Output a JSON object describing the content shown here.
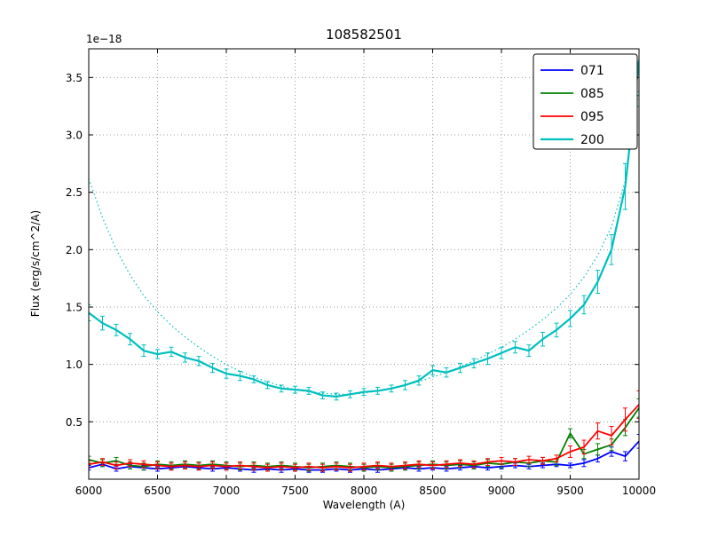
{
  "figure": {
    "title": "108582501",
    "offset_text": "1e−18",
    "xlabel": "Wavelength (A)",
    "ylabel": "Flux (erg/s/cm^2/A)"
  },
  "chart_data": {
    "type": "line",
    "title": "108582501",
    "xlabel": "Wavelength (A)",
    "ylabel": "Flux (erg/s/cm^2/A)",
    "y_offset_factor": "1e−18",
    "xlim": [
      6000,
      10000
    ],
    "ylim": [
      0,
      3.75
    ],
    "xticks": [
      "6000",
      "6500",
      "7000",
      "7500",
      "8000",
      "8500",
      "9000",
      "9500",
      "10000"
    ],
    "yticks": [
      "0.5",
      "1.0",
      "1.5",
      "2.0",
      "2.5",
      "3.0",
      "3.5"
    ],
    "grid": true,
    "legend_position": "upper right",
    "x": [
      6000,
      6100,
      6200,
      6300,
      6400,
      6500,
      6600,
      6700,
      6800,
      6900,
      7000,
      7100,
      7200,
      7300,
      7400,
      7500,
      7600,
      7700,
      7800,
      7900,
      8000,
      8100,
      8200,
      8300,
      8400,
      8500,
      8600,
      8700,
      8800,
      8900,
      9000,
      9100,
      9200,
      9300,
      9400,
      9500,
      9600,
      9700,
      9800,
      9900,
      10000
    ],
    "series": [
      {
        "name": "071",
        "color": "#0000ff",
        "lw": 1.8,
        "values": [
          0.1,
          0.13,
          0.09,
          0.11,
          0.1,
          0.09,
          0.1,
          0.11,
          0.1,
          0.09,
          0.1,
          0.09,
          0.08,
          0.09,
          0.08,
          0.09,
          0.08,
          0.08,
          0.09,
          0.08,
          0.09,
          0.08,
          0.09,
          0.1,
          0.09,
          0.1,
          0.09,
          0.1,
          0.11,
          0.1,
          0.11,
          0.12,
          0.11,
          0.12,
          0.13,
          0.12,
          0.14,
          0.18,
          0.24,
          0.2,
          0.33
        ],
        "err": [
          0.02,
          0.02,
          0.02,
          0.02,
          0.02,
          0.02,
          0.02,
          0.02,
          0.02,
          0.02,
          0.02,
          0.02,
          0.02,
          0.02,
          0.02,
          0.02,
          0.02,
          0.02,
          0.02,
          0.02,
          0.02,
          0.02,
          0.02,
          0.02,
          0.02,
          0.02,
          0.02,
          0.02,
          0.02,
          0.02,
          0.02,
          0.02,
          0.02,
          0.02,
          0.02,
          0.02,
          0.03,
          0.03,
          0.04,
          0.04,
          0.06
        ]
      },
      {
        "name": "085",
        "color": "#008000",
        "lw": 1.8,
        "values": [
          0.17,
          0.14,
          0.16,
          0.12,
          0.11,
          0.13,
          0.12,
          0.13,
          0.12,
          0.13,
          0.12,
          0.11,
          0.12,
          0.11,
          0.12,
          0.11,
          0.1,
          0.11,
          0.12,
          0.11,
          0.1,
          0.11,
          0.1,
          0.11,
          0.12,
          0.13,
          0.12,
          0.13,
          0.12,
          0.14,
          0.13,
          0.15,
          0.14,
          0.16,
          0.15,
          0.4,
          0.22,
          0.26,
          0.3,
          0.45,
          0.62
        ],
        "err": [
          0.03,
          0.03,
          0.03,
          0.03,
          0.03,
          0.03,
          0.03,
          0.03,
          0.03,
          0.03,
          0.03,
          0.03,
          0.03,
          0.03,
          0.03,
          0.03,
          0.03,
          0.03,
          0.03,
          0.03,
          0.03,
          0.03,
          0.03,
          0.03,
          0.03,
          0.03,
          0.03,
          0.03,
          0.03,
          0.03,
          0.03,
          0.03,
          0.03,
          0.03,
          0.03,
          0.04,
          0.04,
          0.05,
          0.05,
          0.07,
          0.08
        ]
      },
      {
        "name": "095",
        "color": "#ff0000",
        "lw": 1.8,
        "values": [
          0.13,
          0.15,
          0.12,
          0.14,
          0.13,
          0.12,
          0.11,
          0.12,
          0.11,
          0.12,
          0.11,
          0.12,
          0.11,
          0.1,
          0.11,
          0.1,
          0.11,
          0.1,
          0.11,
          0.1,
          0.11,
          0.12,
          0.11,
          0.12,
          0.13,
          0.12,
          0.13,
          0.14,
          0.13,
          0.15,
          0.16,
          0.15,
          0.17,
          0.16,
          0.18,
          0.24,
          0.28,
          0.42,
          0.38,
          0.52,
          0.65
        ],
        "err": [
          0.03,
          0.03,
          0.03,
          0.03,
          0.03,
          0.03,
          0.03,
          0.03,
          0.03,
          0.03,
          0.03,
          0.03,
          0.03,
          0.03,
          0.03,
          0.03,
          0.03,
          0.03,
          0.03,
          0.03,
          0.03,
          0.03,
          0.03,
          0.03,
          0.03,
          0.03,
          0.03,
          0.03,
          0.03,
          0.03,
          0.03,
          0.03,
          0.03,
          0.03,
          0.03,
          0.05,
          0.06,
          0.07,
          0.08,
          0.1,
          0.12
        ]
      },
      {
        "name": "200",
        "color": "#00bfbf",
        "lw": 2.2,
        "values": [
          1.45,
          1.36,
          1.3,
          1.22,
          1.12,
          1.09,
          1.11,
          1.06,
          1.03,
          0.97,
          0.92,
          0.9,
          0.87,
          0.82,
          0.79,
          0.78,
          0.77,
          0.73,
          0.72,
          0.74,
          0.76,
          0.77,
          0.79,
          0.82,
          0.86,
          0.95,
          0.93,
          0.97,
          1.01,
          1.05,
          1.1,
          1.15,
          1.12,
          1.22,
          1.3,
          1.4,
          1.52,
          1.72,
          2.0,
          2.55,
          3.65
        ],
        "err": [
          0.07,
          0.06,
          0.05,
          0.05,
          0.05,
          0.04,
          0.04,
          0.04,
          0.04,
          0.04,
          0.04,
          0.04,
          0.03,
          0.03,
          0.03,
          0.03,
          0.03,
          0.03,
          0.03,
          0.03,
          0.03,
          0.03,
          0.03,
          0.04,
          0.04,
          0.04,
          0.04,
          0.04,
          0.04,
          0.05,
          0.05,
          0.05,
          0.05,
          0.06,
          0.06,
          0.07,
          0.08,
          0.1,
          0.13,
          0.2,
          0.4
        ]
      }
    ],
    "model": {
      "name": "200-model-dotted",
      "color": "#00bfbf",
      "values": [
        2.62,
        2.28,
        2.0,
        1.78,
        1.6,
        1.46,
        1.34,
        1.24,
        1.15,
        1.07,
        1.0,
        0.94,
        0.89,
        0.85,
        0.81,
        0.78,
        0.76,
        0.75,
        0.74,
        0.74,
        0.75,
        0.77,
        0.79,
        0.82,
        0.85,
        0.89,
        0.93,
        0.98,
        1.03,
        1.09,
        1.15,
        1.22,
        1.3,
        1.39,
        1.49,
        1.61,
        1.76,
        1.95,
        2.2,
        2.6,
        3.4
      ]
    }
  }
}
